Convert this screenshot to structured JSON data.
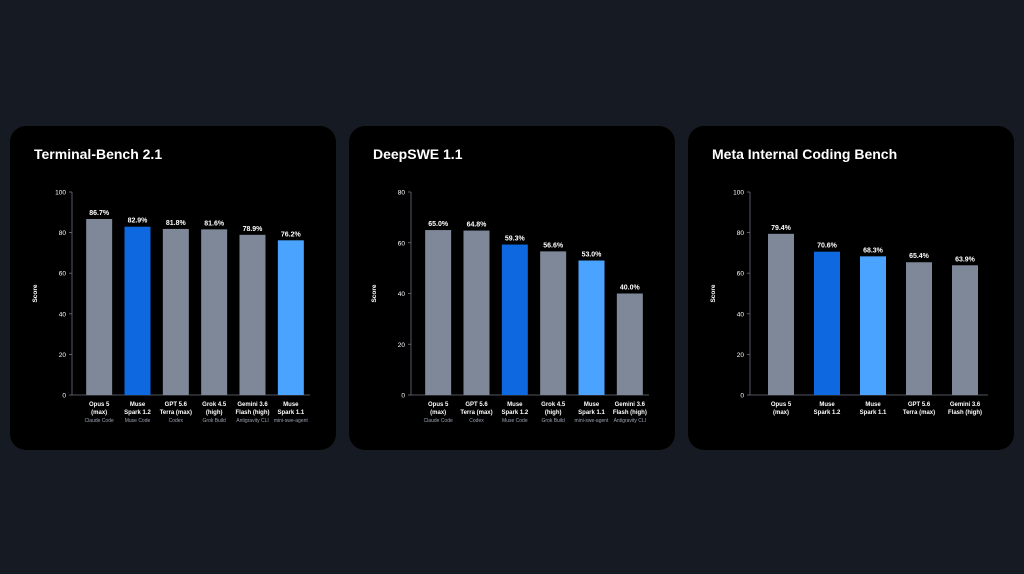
{
  "colors": {
    "background": "#161a22",
    "card": "#000000",
    "gray_bar": "#7f8898",
    "muse_spark_1_2": "#0e68e0",
    "muse_spark_1_1": "#4aa3ff",
    "text": "#ffffff",
    "subtext": "#9aa3b2",
    "axis": "#6b7280"
  },
  "chart_data": [
    {
      "type": "bar",
      "title": "Terminal-Bench 2.1",
      "ylabel": "Score",
      "ylim": [
        0,
        100
      ],
      "yticks": [
        0,
        20,
        40,
        60,
        80,
        100
      ],
      "categories": [
        {
          "line1": "Opus 5",
          "line2": "(max)",
          "harness": "Claude Code"
        },
        {
          "line1": "Muse",
          "line2": "Spark 1.2",
          "harness": "Muse Code"
        },
        {
          "line1": "GPT 5.6",
          "line2": "Terra (max)",
          "harness": "Codex"
        },
        {
          "line1": "Grok 4.5",
          "line2": "(high)",
          "harness": "Grok Build"
        },
        {
          "line1": "Gemini 3.6",
          "line2": "Flash (high)",
          "harness": "Antigravity CLI"
        },
        {
          "line1": "Muse",
          "line2": "Spark 1.1",
          "harness": "mini-swe-agent"
        }
      ],
      "values": [
        86.7,
        82.9,
        81.8,
        81.6,
        78.9,
        76.2
      ],
      "value_labels": [
        "86.7%",
        "82.9%",
        "81.8%",
        "81.6%",
        "78.9%",
        "76.2%"
      ],
      "bar_colors": [
        "#7f8898",
        "#0e68e0",
        "#7f8898",
        "#7f8898",
        "#7f8898",
        "#4aa3ff"
      ]
    },
    {
      "type": "bar",
      "title": "DeepSWE 1.1",
      "ylabel": "Score",
      "ylim": [
        0,
        80
      ],
      "yticks": [
        0,
        20,
        40,
        60,
        80
      ],
      "categories": [
        {
          "line1": "Opus 5",
          "line2": "(max)",
          "harness": "Claude Code"
        },
        {
          "line1": "GPT 5.6",
          "line2": "Terra (max)",
          "harness": "Codex"
        },
        {
          "line1": "Muse",
          "line2": "Spark 1.2",
          "harness": "Muse Code"
        },
        {
          "line1": "Grok 4.5",
          "line2": "(high)",
          "harness": "Grok Build"
        },
        {
          "line1": "Muse",
          "line2": "Spark 1.1",
          "harness": "mini-swe-agent"
        },
        {
          "line1": "Gemini 3.6",
          "line2": "Flash (high)",
          "harness": "Antigravity CLI"
        }
      ],
      "values": [
        65.0,
        64.8,
        59.3,
        56.6,
        53.0,
        40.0
      ],
      "value_labels": [
        "65.0%",
        "64.8%",
        "59.3%",
        "56.6%",
        "53.0%",
        "40.0%"
      ],
      "bar_colors": [
        "#7f8898",
        "#7f8898",
        "#0e68e0",
        "#7f8898",
        "#4aa3ff",
        "#7f8898"
      ]
    },
    {
      "type": "bar",
      "title": "Meta Internal Coding Bench",
      "ylabel": "Score",
      "ylim": [
        0,
        100
      ],
      "yticks": [
        0,
        20,
        40,
        60,
        80,
        100
      ],
      "categories": [
        {
          "line1": "Opus 5",
          "line2": "(max)",
          "harness": ""
        },
        {
          "line1": "Muse",
          "line2": "Spark 1.2",
          "harness": ""
        },
        {
          "line1": "Muse",
          "line2": "Spark 1.1",
          "harness": ""
        },
        {
          "line1": "GPT 5.6",
          "line2": "Terra (max)",
          "harness": ""
        },
        {
          "line1": "Gemini 3.6",
          "line2": "Flash (high)",
          "harness": ""
        }
      ],
      "values": [
        79.4,
        70.6,
        68.3,
        65.4,
        63.9
      ],
      "value_labels": [
        "79.4%",
        "70.6%",
        "68.3%",
        "65.4%",
        "63.9%"
      ],
      "bar_colors": [
        "#7f8898",
        "#0e68e0",
        "#4aa3ff",
        "#7f8898",
        "#7f8898"
      ]
    }
  ]
}
